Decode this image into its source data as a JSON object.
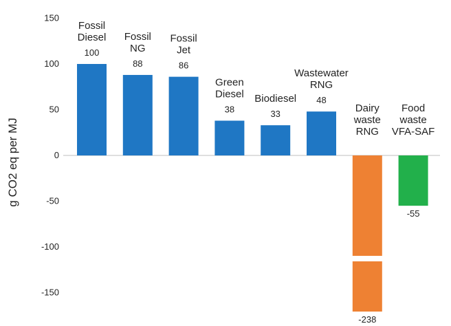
{
  "chart_data": {
    "type": "bar",
    "title": "",
    "xlabel": "",
    "ylabel": "g CO2 eq per MJ",
    "ylim": [
      -175,
      150
    ],
    "yticks": [
      150,
      100,
      50,
      0,
      -50,
      -100,
      -150
    ],
    "grid": false,
    "axis_break": true,
    "categories": [
      [
        "Fossil",
        "Diesel"
      ],
      [
        "Fossil",
        "NG"
      ],
      [
        "Fossil",
        "Jet"
      ],
      [
        "Green",
        "Diesel"
      ],
      [
        "Biodiesel"
      ],
      [
        "Wastewater",
        "RNG"
      ],
      [
        "Dairy",
        "waste",
        "RNG"
      ],
      [
        "Food",
        "waste",
        "VFA-SAF"
      ]
    ],
    "values": [
      100,
      88,
      86,
      38,
      33,
      48,
      -238,
      -55
    ],
    "value_labels": [
      "100",
      "88",
      "86",
      "38",
      "33",
      "48",
      "-238",
      "-55"
    ],
    "colors": [
      "#1f77c4",
      "#1f77c4",
      "#1f77c4",
      "#1f77c4",
      "#1f77c4",
      "#1f77c4",
      "#ee8133",
      "#22b04b"
    ]
  }
}
